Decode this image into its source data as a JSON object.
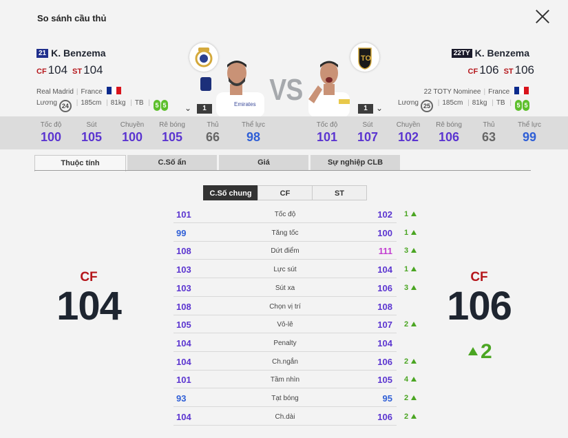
{
  "header": {
    "title": "So sánh cầu thủ"
  },
  "left": {
    "season": "21",
    "name": "K. Benzema",
    "positions": [
      {
        "pos": "CF",
        "ovr": "104"
      },
      {
        "pos": "ST",
        "ovr": "104"
      }
    ],
    "club": "Real Madrid",
    "nation": "France",
    "wage_label": "Lương",
    "wage": "24",
    "height": "185cm",
    "weight": "81kg",
    "body": "TB",
    "skill_left": "5",
    "skill_right": "5",
    "level": "1"
  },
  "right": {
    "season": "22TY",
    "name": "K. Benzema",
    "positions": [
      {
        "pos": "CF",
        "ovr": "106"
      },
      {
        "pos": "ST",
        "ovr": "106"
      }
    ],
    "club": "22 TOTY Nominee",
    "nation": "France",
    "wage_label": "Lương",
    "wage": "25",
    "height": "185cm",
    "weight": "81kg",
    "body": "TB",
    "skill_left": "5",
    "skill_right": "5",
    "level": "1"
  },
  "vs_label": "VS",
  "summary_stats": {
    "labels": [
      "Tốc độ",
      "Sút",
      "Chuyền",
      "Rê bóng",
      "Thủ",
      "Thể lực"
    ],
    "left": [
      "100",
      "105",
      "100",
      "105",
      "66",
      "98"
    ],
    "right": [
      "101",
      "107",
      "102",
      "106",
      "63",
      "99"
    ],
    "colors": [
      "#5b35d0",
      "#5b35d0",
      "#5b35d0",
      "#5b35d0",
      "#666666",
      "#2f5fd6"
    ],
    "right_colors": [
      "#5b35d0",
      "#5b35d0",
      "#5b35d0",
      "#5b35d0",
      "#666666",
      "#2f5fd6"
    ]
  },
  "tabs": [
    "Thuộc tính",
    "C.Số ẩn",
    "Giá",
    "Sự nghiệp CLB"
  ],
  "subtabs": [
    "C.Số chung",
    "CF",
    "ST"
  ],
  "attributes": [
    {
      "name": "Tốc độ",
      "left": "101",
      "right": "102",
      "diff": "1",
      "lc": "#5b35d0",
      "rc": "#5b35d0"
    },
    {
      "name": "Tăng tốc",
      "left": "99",
      "right": "100",
      "diff": "1",
      "lc": "#2f5fd6",
      "rc": "#5b35d0"
    },
    {
      "name": "Dứt điểm",
      "left": "108",
      "right": "111",
      "diff": "3",
      "lc": "#5b35d0",
      "rc": "#c23fd0"
    },
    {
      "name": "Lực sút",
      "left": "103",
      "right": "104",
      "diff": "1",
      "lc": "#5b35d0",
      "rc": "#5b35d0"
    },
    {
      "name": "Sút xa",
      "left": "103",
      "right": "106",
      "diff": "3",
      "lc": "#5b35d0",
      "rc": "#5b35d0"
    },
    {
      "name": "Chọn vị trí",
      "left": "108",
      "right": "108",
      "diff": "",
      "lc": "#5b35d0",
      "rc": "#5b35d0"
    },
    {
      "name": "Vô-lê",
      "left": "105",
      "right": "107",
      "diff": "2",
      "lc": "#5b35d0",
      "rc": "#5b35d0"
    },
    {
      "name": "Penalty",
      "left": "104",
      "right": "104",
      "diff": "",
      "lc": "#5b35d0",
      "rc": "#5b35d0"
    },
    {
      "name": "Ch.ngắn",
      "left": "104",
      "right": "106",
      "diff": "2",
      "lc": "#5b35d0",
      "rc": "#5b35d0"
    },
    {
      "name": "Tầm nhìn",
      "left": "101",
      "right": "105",
      "diff": "4",
      "lc": "#5b35d0",
      "rc": "#5b35d0"
    },
    {
      "name": "Tạt bóng",
      "left": "93",
      "right": "95",
      "diff": "2",
      "lc": "#2f5fd6",
      "rc": "#2f5fd6"
    },
    {
      "name": "Ch.dài",
      "left": "104",
      "right": "106",
      "diff": "2",
      "lc": "#5b35d0",
      "rc": "#5b35d0"
    }
  ],
  "big_left": {
    "pos": "CF",
    "ovr": "104"
  },
  "big_right": {
    "pos": "CF",
    "ovr": "106"
  },
  "big_diff": "2"
}
